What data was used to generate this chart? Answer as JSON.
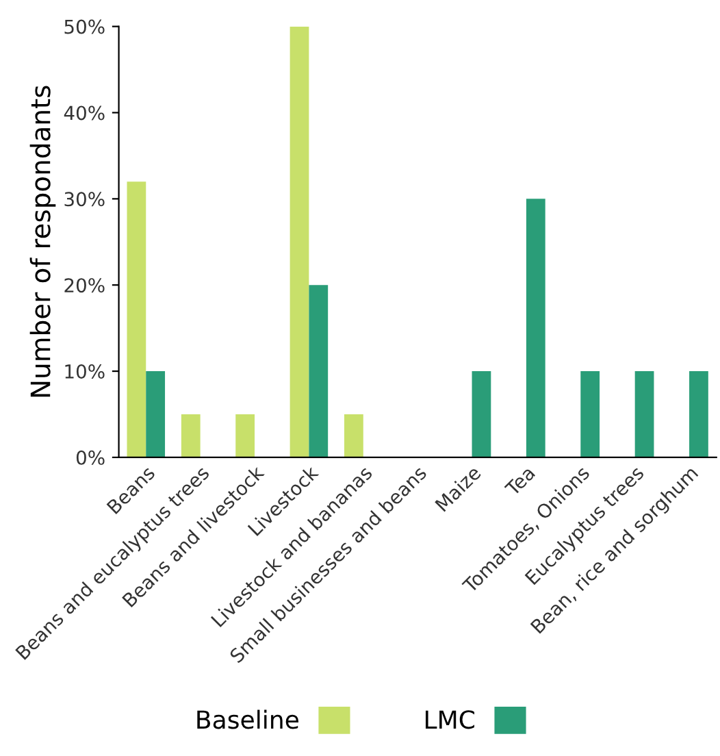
{
  "chart_data": {
    "type": "bar",
    "ylabel": "Number of respondants",
    "categories": [
      "Beans",
      "Beans and eucalyptus trees",
      "Beans and livestock",
      "Livestock",
      "Livestock and bananas",
      "Small businesses and beans",
      "Maize",
      "Tea",
      "Tomatoes, Onions",
      "Eucalyptus trees",
      "Bean, rice and sorghum"
    ],
    "series": [
      {
        "name": "Baseline",
        "color": "#c8e06a",
        "values": [
          32,
          5,
          5,
          50,
          5,
          null,
          null,
          null,
          null,
          null,
          null
        ]
      },
      {
        "name": "LMC",
        "color": "#2a9d78",
        "values": [
          10,
          null,
          null,
          20,
          null,
          null,
          10,
          30,
          10,
          10,
          10
        ]
      }
    ],
    "ylim": [
      0,
      50
    ],
    "yticks": [
      {
        "value": 0,
        "label": "0%"
      },
      {
        "value": 10,
        "label": "10%"
      },
      {
        "value": 20,
        "label": "20%"
      },
      {
        "value": 30,
        "label": "30%"
      },
      {
        "value": 40,
        "label": "40%"
      },
      {
        "value": 50,
        "label": "50%"
      }
    ],
    "grid": false,
    "legend": "bottom"
  }
}
